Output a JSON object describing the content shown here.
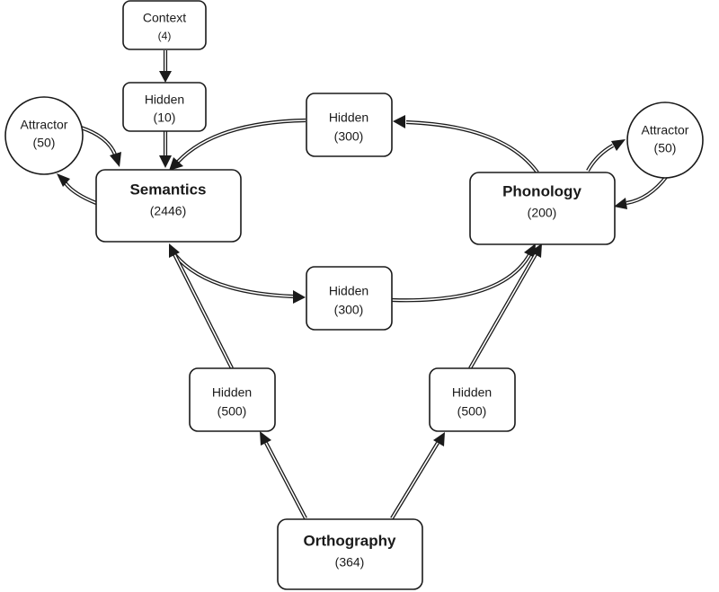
{
  "nodes": {
    "context": {
      "label": "Context",
      "size": "(4)"
    },
    "hidden_context": {
      "label": "Hidden",
      "size": "(10)"
    },
    "attractor_sem": {
      "label": "Attractor",
      "size": "(50)"
    },
    "semantics": {
      "label": "Semantics",
      "size": "(2446)"
    },
    "hidden_ps": {
      "label": "Hidden",
      "size": "(300)"
    },
    "hidden_sp": {
      "label": "Hidden",
      "size": "(300)"
    },
    "phonology": {
      "label": "Phonology",
      "size": "(200)"
    },
    "attractor_phon": {
      "label": "Attractor",
      "size": "(50)"
    },
    "hidden_os": {
      "label": "Hidden",
      "size": "(500)"
    },
    "hidden_op": {
      "label": "Hidden",
      "size": "(500)"
    },
    "orthography": {
      "label": "Orthography",
      "size": "(364)"
    }
  }
}
